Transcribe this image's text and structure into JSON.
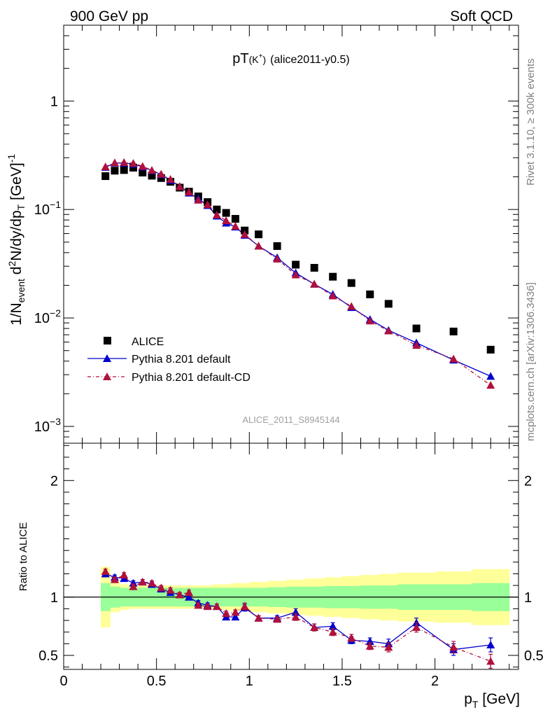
{
  "header": {
    "left": "900 GeV pp",
    "right": "Soft QCD"
  },
  "side_labels": {
    "rivet": "Rivet 3.1.10, ≥ 300k events",
    "mcplots": "mcplots.cern.ch [arXiv:1306.3436]"
  },
  "chart_data": [
    {
      "type": "scatter",
      "panel": "main",
      "title_main": "pT",
      "title_sub": "(K",
      "title_sup": "+",
      "title_close": ")",
      "title_tail": "(alice2011-y0.5)",
      "ylabel": "1/N_event d²N/dy/dp_T [GeV]⁻¹",
      "yscale": "log",
      "ylim": [
        0.0007,
        5
      ],
      "xlim": [
        0,
        2.45
      ],
      "yticks": [
        {
          "value": 1,
          "label": "1"
        },
        {
          "value": 0.1,
          "label": "10",
          "exp": "−1"
        },
        {
          "value": 0.01,
          "label": "10",
          "exp": "−2"
        },
        {
          "value": 0.001,
          "label": "10",
          "exp": "−3"
        }
      ],
      "watermark": "ALICE_2011_S8945144",
      "legend": [
        {
          "name": "ALICE",
          "color": "#000000",
          "marker": "square"
        },
        {
          "name": "Pythia 8.201 default",
          "color": "#0000cc",
          "marker": "triangle"
        },
        {
          "name": "Pythia 8.201 default-CD",
          "color": "#b0103c",
          "marker": "triangle"
        }
      ],
      "series": [
        {
          "name": "ALICE",
          "x": [
            0.225,
            0.275,
            0.325,
            0.375,
            0.425,
            0.475,
            0.525,
            0.575,
            0.625,
            0.675,
            0.725,
            0.775,
            0.825,
            0.875,
            0.925,
            0.975,
            1.05,
            1.15,
            1.25,
            1.35,
            1.45,
            1.55,
            1.65,
            1.75,
            1.9,
            2.1,
            2.3
          ],
          "y": [
            0.203,
            0.228,
            0.231,
            0.243,
            0.219,
            0.205,
            0.195,
            0.18,
            0.159,
            0.146,
            0.132,
            0.117,
            0.1,
            0.093,
            0.082,
            0.064,
            0.059,
            0.046,
            0.031,
            0.029,
            0.024,
            0.021,
            0.0165,
            0.0135,
            0.008,
            0.0075,
            0.0051
          ]
        },
        {
          "name": "Pythia 8.201 default",
          "x": [
            0.225,
            0.275,
            0.325,
            0.375,
            0.425,
            0.475,
            0.525,
            0.575,
            0.625,
            0.675,
            0.725,
            0.775,
            0.825,
            0.875,
            0.925,
            0.975,
            1.05,
            1.15,
            1.25,
            1.35,
            1.45,
            1.55,
            1.65,
            1.75,
            1.9,
            2.1,
            2.3
          ],
          "y": [
            0.245,
            0.268,
            0.268,
            0.262,
            0.247,
            0.228,
            0.21,
            0.186,
            0.163,
            0.142,
            0.126,
            0.109,
            0.087,
            0.075,
            0.069,
            0.058,
            0.046,
            0.036,
            0.026,
            0.0205,
            0.0165,
            0.0125,
            0.0097,
            0.0077,
            0.0059,
            0.0041,
            0.0029
          ]
        },
        {
          "name": "Pythia 8.201 default-CD",
          "x": [
            0.225,
            0.275,
            0.325,
            0.375,
            0.425,
            0.475,
            0.525,
            0.575,
            0.625,
            0.675,
            0.725,
            0.775,
            0.825,
            0.875,
            0.925,
            0.975,
            1.05,
            1.15,
            1.25,
            1.35,
            1.45,
            1.55,
            1.65,
            1.75,
            1.9,
            2.1,
            2.3
          ],
          "y": [
            0.248,
            0.27,
            0.272,
            0.267,
            0.25,
            0.23,
            0.212,
            0.19,
            0.163,
            0.145,
            0.122,
            0.111,
            0.089,
            0.079,
            0.07,
            0.059,
            0.046,
            0.035,
            0.025,
            0.0205,
            0.016,
            0.0128,
            0.0094,
            0.0076,
            0.0056,
            0.0042,
            0.0024
          ]
        }
      ]
    },
    {
      "type": "scatter",
      "panel": "ratio",
      "ylabel": "Ratio to ALICE",
      "xlabel": "p_T [GeV]",
      "ylim": [
        0.38,
        2.32
      ],
      "xlim": [
        0,
        2.45
      ],
      "yticks": [
        0.5,
        1,
        2
      ],
      "xticks": [
        0,
        0.5,
        1,
        1.5,
        2
      ],
      "bands": {
        "x_edges": [
          0.2,
          0.25,
          0.3,
          0.35,
          0.4,
          0.45,
          0.5,
          0.55,
          0.6,
          0.65,
          0.7,
          0.75,
          0.8,
          0.85,
          0.9,
          0.95,
          1.0,
          1.1,
          1.2,
          1.3,
          1.4,
          1.5,
          1.6,
          1.7,
          1.8,
          2.0,
          2.2,
          2.4
        ],
        "inner": [
          0.12,
          0.09,
          0.08,
          0.08,
          0.08,
          0.08,
          0.08,
          0.08,
          0.08,
          0.08,
          0.08,
          0.08,
          0.08,
          0.08,
          0.08,
          0.08,
          0.08,
          0.085,
          0.09,
          0.09,
          0.095,
          0.095,
          0.1,
          0.1,
          0.11,
          0.11,
          0.12
        ],
        "outer": [
          0.26,
          0.13,
          0.11,
          0.1,
          0.1,
          0.1,
          0.1,
          0.1,
          0.1,
          0.1,
          0.1,
          0.1,
          0.11,
          0.11,
          0.12,
          0.12,
          0.13,
          0.14,
          0.15,
          0.16,
          0.17,
          0.18,
          0.19,
          0.2,
          0.21,
          0.22,
          0.24
        ]
      },
      "series": [
        {
          "name": "Pythia 8.201 default",
          "x": [
            0.225,
            0.275,
            0.325,
            0.375,
            0.425,
            0.475,
            0.525,
            0.575,
            0.625,
            0.675,
            0.725,
            0.775,
            0.825,
            0.875,
            0.925,
            0.975,
            1.05,
            1.15,
            1.25,
            1.35,
            1.45,
            1.55,
            1.65,
            1.75,
            1.9,
            2.1,
            2.3
          ],
          "y": [
            1.2,
            1.17,
            1.16,
            1.12,
            1.13,
            1.11,
            1.07,
            1.04,
            1.02,
            1.0,
            0.95,
            0.93,
            0.92,
            0.83,
            0.83,
            0.91,
            0.82,
            0.82,
            0.87,
            0.74,
            0.75,
            0.63,
            0.62,
            0.6,
            0.78,
            0.55,
            0.59
          ],
          "err": [
            0.02,
            0.02,
            0.02,
            0.02,
            0.02,
            0.02,
            0.02,
            0.02,
            0.02,
            0.02,
            0.02,
            0.02,
            0.02,
            0.02,
            0.02,
            0.03,
            0.02,
            0.02,
            0.03,
            0.03,
            0.03,
            0.03,
            0.03,
            0.04,
            0.04,
            0.05,
            0.06
          ]
        },
        {
          "name": "Pythia 8.201 default-CD",
          "x": [
            0.225,
            0.275,
            0.325,
            0.375,
            0.425,
            0.475,
            0.525,
            0.575,
            0.625,
            0.675,
            0.725,
            0.775,
            0.825,
            0.875,
            0.925,
            0.975,
            1.05,
            1.15,
            1.25,
            1.35,
            1.45,
            1.55,
            1.65,
            1.75,
            1.9,
            2.1,
            2.3
          ],
          "y": [
            1.22,
            1.15,
            1.19,
            1.09,
            1.13,
            1.12,
            1.08,
            1.06,
            1.02,
            1.04,
            0.93,
            0.92,
            0.92,
            0.86,
            0.87,
            0.92,
            0.82,
            0.81,
            0.83,
            0.74,
            0.7,
            0.65,
            0.58,
            0.57,
            0.74,
            0.57,
            0.45
          ],
          "err": [
            0.02,
            0.02,
            0.02,
            0.02,
            0.02,
            0.02,
            0.02,
            0.02,
            0.02,
            0.02,
            0.02,
            0.02,
            0.02,
            0.02,
            0.02,
            0.03,
            0.02,
            0.02,
            0.03,
            0.03,
            0.03,
            0.03,
            0.03,
            0.04,
            0.04,
            0.05,
            0.06
          ]
        }
      ]
    }
  ]
}
